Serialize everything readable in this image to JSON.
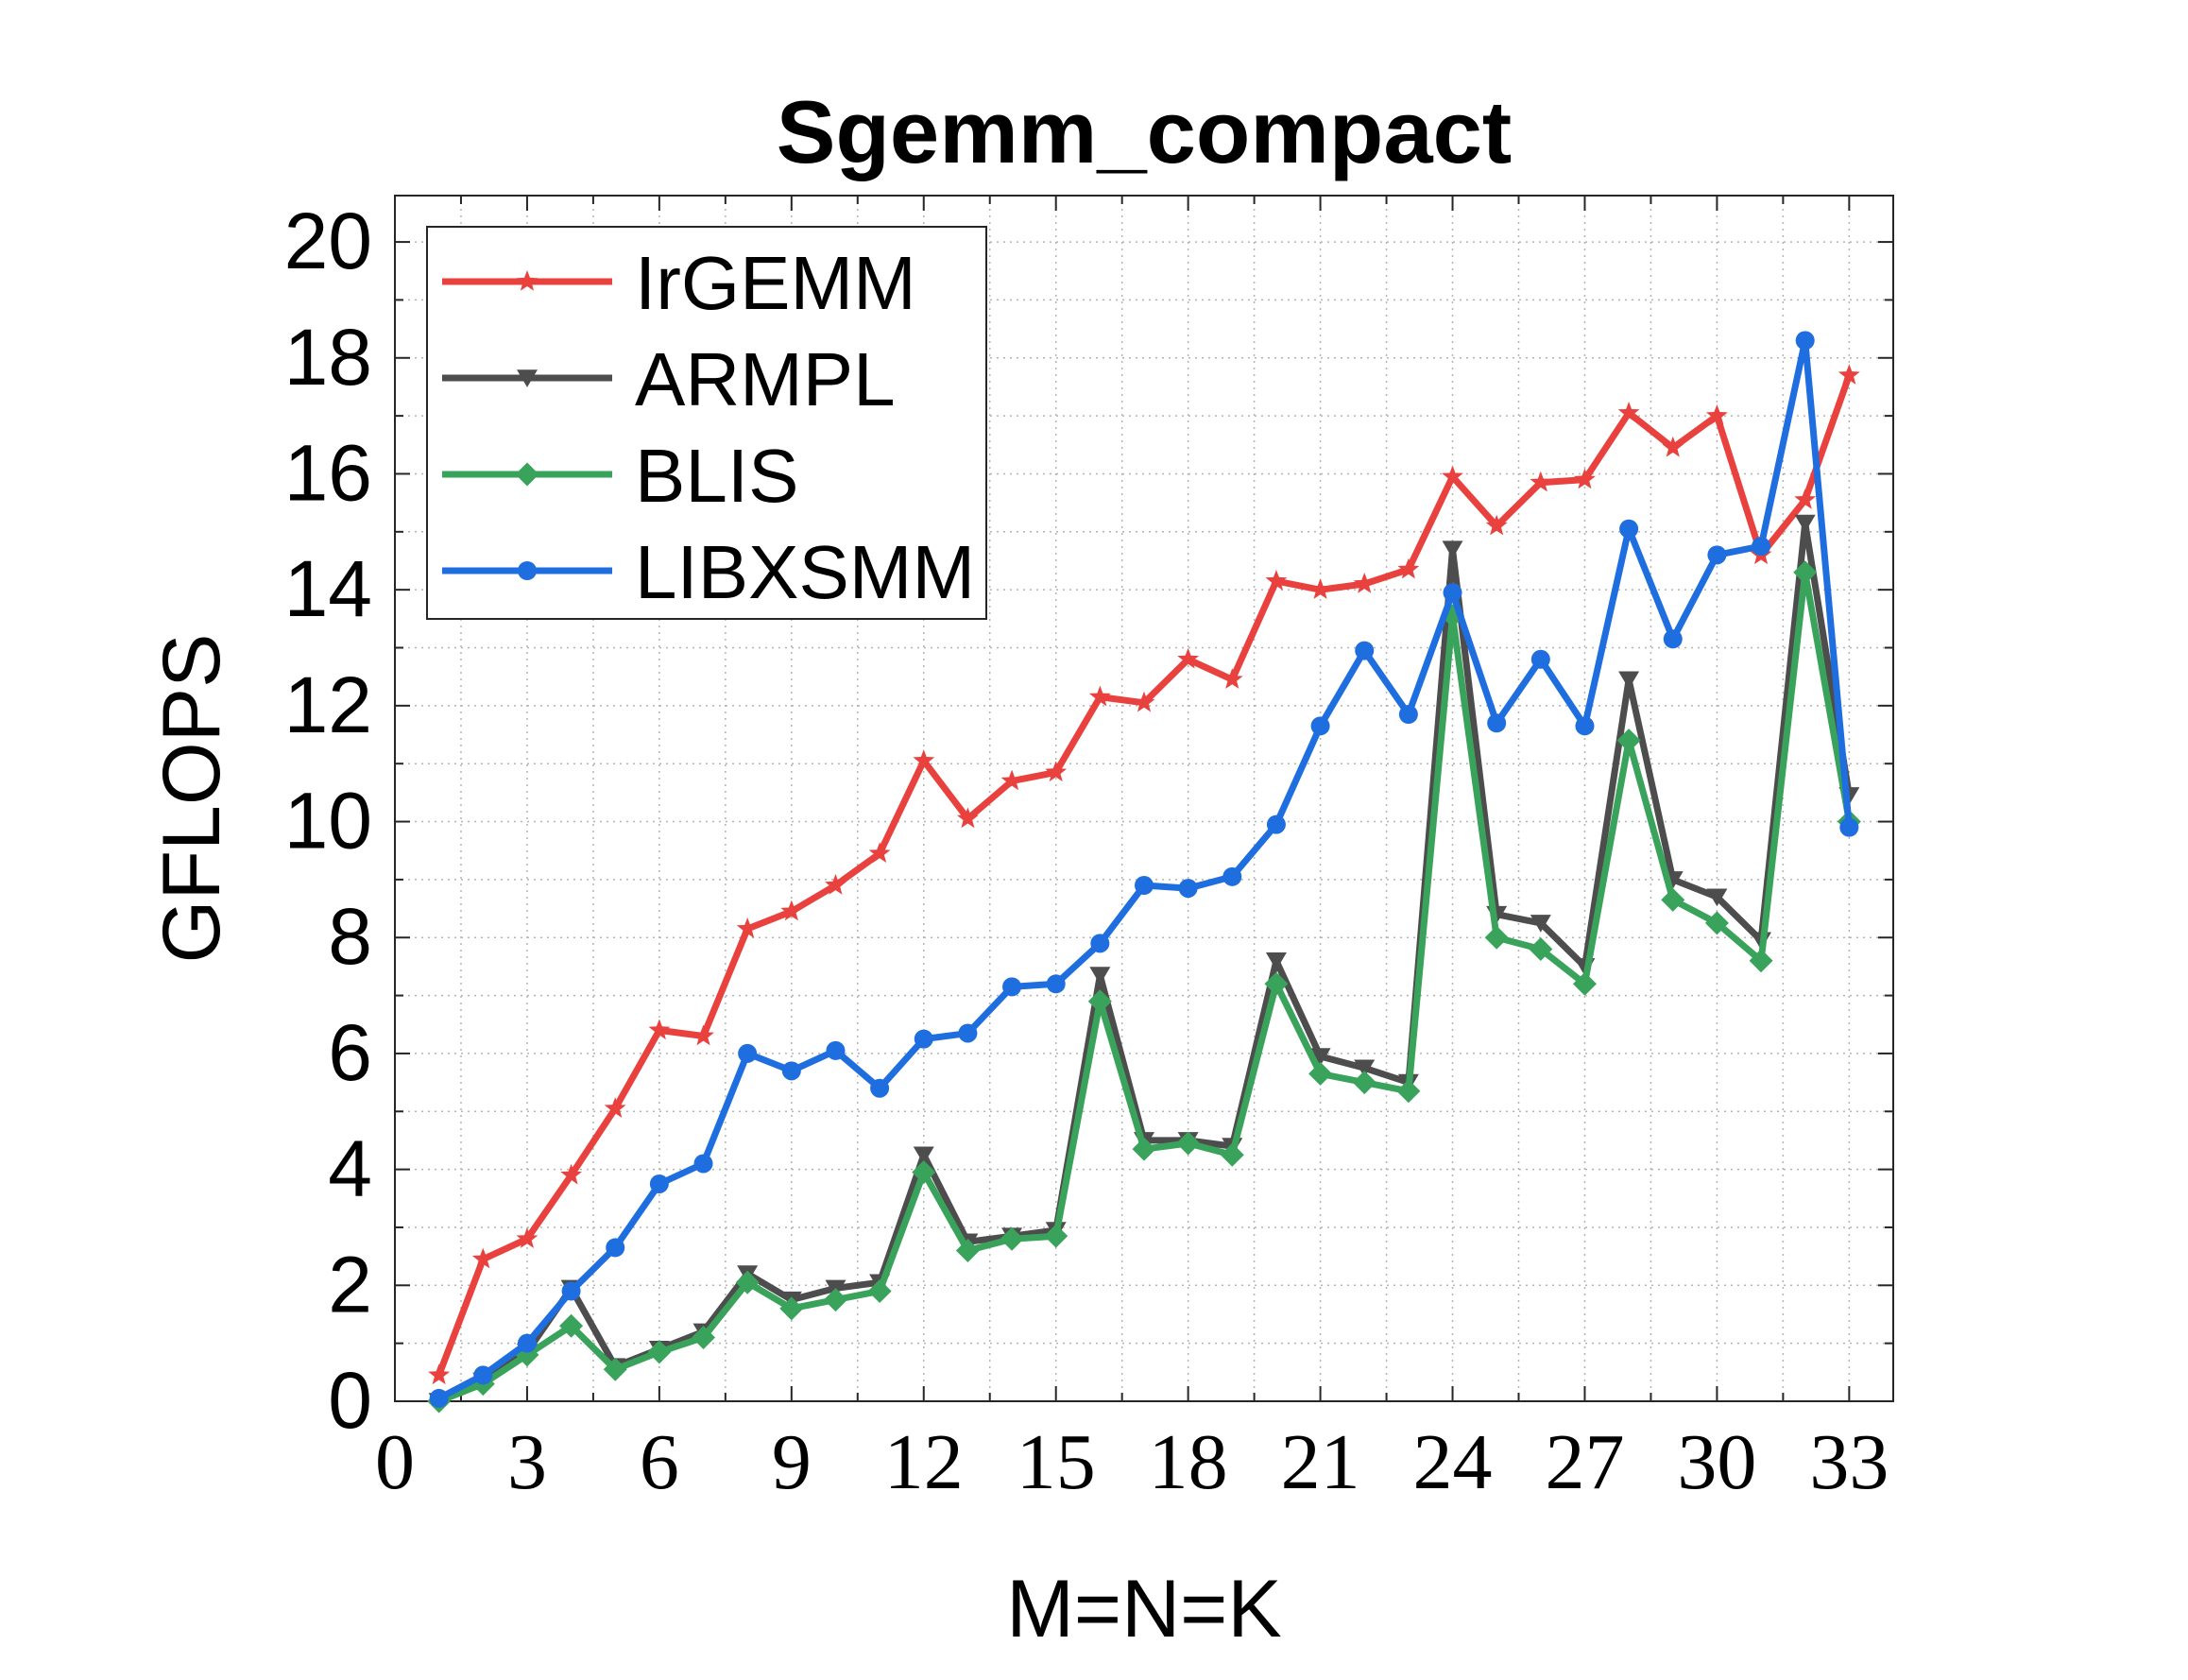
{
  "chart_data": {
    "type": "line",
    "title": "Sgemm_compact",
    "xlabel": "M=N=K",
    "ylabel": "GFLOPS",
    "xlim": [
      0,
      34
    ],
    "ylim": [
      0,
      20.8
    ],
    "xticks": [
      "0",
      "3",
      "6",
      "9",
      "12",
      "15",
      "18",
      "21",
      "24",
      "27",
      "30",
      "33"
    ],
    "yticks": [
      "0",
      "2",
      "4",
      "6",
      "8",
      "10",
      "12",
      "14",
      "16",
      "18",
      "20"
    ],
    "grid": true,
    "legend_position": "top-left",
    "x": [
      1,
      2,
      3,
      4,
      5,
      6,
      7,
      8,
      9,
      10,
      11,
      12,
      13,
      14,
      15,
      16,
      17,
      18,
      19,
      20,
      21,
      22,
      23,
      24,
      25,
      26,
      27,
      28,
      29,
      30,
      31,
      32,
      33
    ],
    "series": [
      {
        "name": "IrGEMM",
        "color": "#e8413e",
        "marker": "star",
        "values": [
          0.45,
          2.45,
          2.8,
          3.9,
          5.05,
          6.4,
          6.3,
          8.15,
          8.45,
          8.9,
          9.45,
          11.05,
          10.05,
          10.7,
          10.85,
          12.15,
          12.05,
          12.8,
          12.45,
          14.15,
          14.0,
          14.1,
          14.35,
          15.95,
          15.1,
          15.85,
          15.9,
          17.05,
          16.45,
          17.0,
          14.6,
          15.55,
          17.7
        ]
      },
      {
        "name": "ARMPL",
        "color": "#4d4d4d",
        "marker": "triangle-down",
        "values": [
          0.0,
          0.35,
          0.85,
          1.95,
          0.6,
          0.9,
          1.2,
          2.2,
          1.75,
          1.95,
          2.05,
          4.25,
          2.75,
          2.85,
          2.95,
          7.35,
          4.5,
          4.5,
          4.4,
          7.6,
          5.95,
          5.75,
          5.5,
          14.7,
          8.4,
          8.25,
          7.5,
          12.45,
          9.0,
          8.7,
          7.95,
          15.15,
          10.45
        ]
      },
      {
        "name": "BLIS",
        "color": "#3aa35b",
        "marker": "diamond",
        "values": [
          0.0,
          0.3,
          0.8,
          1.3,
          0.55,
          0.85,
          1.1,
          2.05,
          1.6,
          1.75,
          1.9,
          3.95,
          2.6,
          2.8,
          2.85,
          6.9,
          4.35,
          4.45,
          4.25,
          7.2,
          5.65,
          5.5,
          5.35,
          13.55,
          8.0,
          7.8,
          7.2,
          11.4,
          8.65,
          8.25,
          7.6,
          14.3,
          10.0
        ]
      },
      {
        "name": "LIBXSMM",
        "color": "#1f6edf",
        "marker": "circle",
        "values": [
          0.05,
          0.45,
          1.0,
          1.9,
          2.65,
          3.75,
          4.1,
          6.0,
          5.7,
          6.05,
          5.4,
          6.25,
          6.35,
          7.15,
          7.2,
          7.9,
          8.9,
          8.85,
          9.05,
          9.95,
          11.65,
          12.95,
          11.85,
          13.95,
          11.7,
          12.8,
          11.65,
          15.05,
          13.15,
          14.6,
          14.75,
          18.3,
          9.9
        ]
      }
    ]
  }
}
